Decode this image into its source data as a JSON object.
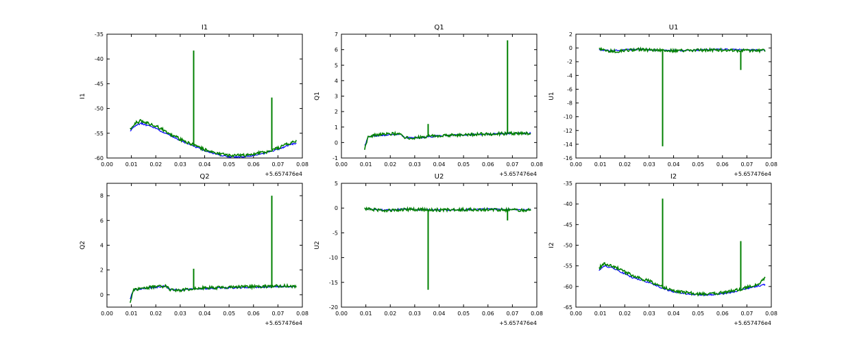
{
  "figure": {
    "x_offset_label": "+5.657476e4"
  },
  "chart_data": [
    {
      "type": "line",
      "title": "I1",
      "ylabel": "I1",
      "xlabel": "",
      "xlim": [
        0.0,
        0.08
      ],
      "ylim": [
        -60,
        -35
      ],
      "xticks": [
        "0.00",
        "0.01",
        "0.02",
        "0.03",
        "0.04",
        "0.05",
        "0.06",
        "0.07",
        "0.08"
      ],
      "yticks": [
        "-35",
        "-40",
        "-45",
        "-50",
        "-55",
        "-60"
      ],
      "x": [
        0.0095,
        0.0115,
        0.014,
        0.017,
        0.02,
        0.023,
        0.026,
        0.03,
        0.035,
        0.04,
        0.045,
        0.05,
        0.055,
        0.06,
        0.065,
        0.07,
        0.075,
        0.0775
      ],
      "series": [
        {
          "color": "#0000ff",
          "values": [
            -54.5,
            -53.5,
            -53.0,
            -53.5,
            -54.0,
            -54.8,
            -55.5,
            -56.5,
            -57.5,
            -58.5,
            -59.3,
            -59.8,
            -59.8,
            -59.5,
            -59.0,
            -58.3,
            -57.3,
            -57.0
          ]
        },
        {
          "color": "#008000",
          "values": [
            -54.0,
            -53.0,
            -52.5,
            -53.0,
            -53.5,
            -54.3,
            -55.2,
            -56.2,
            -57.3,
            -58.3,
            -59.0,
            -59.5,
            -59.5,
            -59.2,
            -58.8,
            -58.0,
            -57.0,
            -56.5
          ]
        }
      ],
      "spikes": [
        {
          "x": 0.0355,
          "y": -38.3
        },
        {
          "x": 0.0675,
          "y": -47.8
        }
      ]
    },
    {
      "type": "line",
      "title": "Q1",
      "ylabel": "Q1",
      "xlabel": "",
      "xlim": [
        0.0,
        0.08
      ],
      "ylim": [
        -1,
        7
      ],
      "xticks": [
        "0.00",
        "0.01",
        "0.02",
        "0.03",
        "0.04",
        "0.05",
        "0.06",
        "0.07",
        "0.08"
      ],
      "yticks": [
        "7",
        "6",
        "5",
        "4",
        "3",
        "2",
        "1",
        "0",
        "-1"
      ],
      "x": [
        0.0095,
        0.011,
        0.015,
        0.02,
        0.024,
        0.026,
        0.03,
        0.035,
        0.04,
        0.05,
        0.06,
        0.07,
        0.0775
      ],
      "series": [
        {
          "color": "#0000ff",
          "values": [
            -0.2,
            0.35,
            0.45,
            0.5,
            0.55,
            0.3,
            0.3,
            0.35,
            0.45,
            0.5,
            0.55,
            0.6,
            0.6
          ]
        },
        {
          "color": "#008000",
          "values": [
            -0.4,
            0.4,
            0.5,
            0.55,
            0.6,
            0.3,
            0.3,
            0.4,
            0.45,
            0.5,
            0.55,
            0.6,
            0.6
          ]
        }
      ],
      "spikes": [
        {
          "x": 0.0355,
          "y": 1.2
        },
        {
          "x": 0.068,
          "y": 6.6
        }
      ]
    },
    {
      "type": "line",
      "title": "U1",
      "ylabel": "U1",
      "xlabel": "",
      "xlim": [
        0.0,
        0.08
      ],
      "ylim": [
        -16,
        2
      ],
      "xticks": [
        "0.00",
        "0.01",
        "0.02",
        "0.03",
        "0.04",
        "0.05",
        "0.06",
        "0.07",
        "0.08"
      ],
      "yticks": [
        "2",
        "0",
        "-2",
        "-4",
        "-6",
        "-8",
        "-10",
        "-12",
        "-14",
        "-16"
      ],
      "x": [
        0.0095,
        0.015,
        0.02,
        0.025,
        0.03,
        0.04,
        0.05,
        0.06,
        0.07,
        0.0775
      ],
      "series": [
        {
          "color": "#0000ff",
          "values": [
            -0.3,
            -0.4,
            -0.3,
            -0.2,
            -0.3,
            -0.4,
            -0.3,
            -0.2,
            -0.3,
            -0.3
          ]
        },
        {
          "color": "#008000",
          "values": [
            -0.2,
            -0.5,
            -0.4,
            -0.2,
            -0.3,
            -0.4,
            -0.3,
            -0.3,
            -0.4,
            -0.4
          ]
        }
      ],
      "spikes": [
        {
          "x": 0.0355,
          "y": -14.3
        },
        {
          "x": 0.0675,
          "y": -3.2
        }
      ]
    },
    {
      "type": "line",
      "title": "Q2",
      "ylabel": "Q2",
      "xlabel": "",
      "xlim": [
        0.0,
        0.08
      ],
      "ylim": [
        -1,
        9
      ],
      "xticks": [
        "0.00",
        "0.01",
        "0.02",
        "0.03",
        "0.04",
        "0.05",
        "0.06",
        "0.07",
        "0.08"
      ],
      "yticks": [
        "8",
        "6",
        "4",
        "2",
        "0"
      ],
      "x": [
        0.0095,
        0.011,
        0.015,
        0.02,
        0.024,
        0.026,
        0.03,
        0.035,
        0.04,
        0.05,
        0.06,
        0.07,
        0.0775
      ],
      "series": [
        {
          "color": "#0000ff",
          "values": [
            -0.3,
            0.4,
            0.5,
            0.6,
            0.7,
            0.4,
            0.4,
            0.45,
            0.5,
            0.55,
            0.6,
            0.65,
            0.65
          ]
        },
        {
          "color": "#008000",
          "values": [
            -0.6,
            0.4,
            0.55,
            0.65,
            0.7,
            0.4,
            0.35,
            0.5,
            0.55,
            0.6,
            0.65,
            0.7,
            0.7
          ]
        }
      ],
      "spikes": [
        {
          "x": 0.0355,
          "y": 2.1
        },
        {
          "x": 0.0675,
          "y": 8.0
        }
      ]
    },
    {
      "type": "line",
      "title": "U2",
      "ylabel": "U2",
      "xlabel": "",
      "xlim": [
        0.0,
        0.08
      ],
      "ylim": [
        -20,
        5
      ],
      "xticks": [
        "0.00",
        "0.01",
        "0.02",
        "0.03",
        "0.04",
        "0.05",
        "0.06",
        "0.07",
        "0.08"
      ],
      "yticks": [
        "5",
        "0",
        "-5",
        "-10",
        "-15",
        "-20"
      ],
      "x": [
        0.0095,
        0.015,
        0.02,
        0.025,
        0.03,
        0.04,
        0.05,
        0.06,
        0.07,
        0.0775
      ],
      "series": [
        {
          "color": "#0000ff",
          "values": [
            -0.2,
            -0.3,
            -0.4,
            -0.2,
            -0.3,
            -0.4,
            -0.3,
            -0.2,
            -0.3,
            -0.3
          ]
        },
        {
          "color": "#008000",
          "values": [
            -0.1,
            -0.4,
            -0.5,
            -0.3,
            -0.3,
            -0.4,
            -0.3,
            -0.3,
            -0.4,
            -0.4
          ]
        }
      ],
      "spikes": [
        {
          "x": 0.0355,
          "y": -16.5
        },
        {
          "x": 0.068,
          "y": -2.5
        }
      ]
    },
    {
      "type": "line",
      "title": "I2",
      "ylabel": "I2",
      "xlabel": "",
      "xlim": [
        0.0,
        0.08
      ],
      "ylim": [
        -65,
        -35
      ],
      "xticks": [
        "0.00",
        "0.01",
        "0.02",
        "0.03",
        "0.04",
        "0.05",
        "0.06",
        "0.07",
        "0.08"
      ],
      "yticks": [
        "-35",
        "-40",
        "-45",
        "-50",
        "-55",
        "-60",
        "-65"
      ],
      "x": [
        0.0095,
        0.0115,
        0.014,
        0.017,
        0.02,
        0.023,
        0.026,
        0.03,
        0.035,
        0.04,
        0.045,
        0.05,
        0.055,
        0.06,
        0.065,
        0.07,
        0.075,
        0.0775
      ],
      "series": [
        {
          "color": "#0000ff",
          "values": [
            -56.0,
            -55.0,
            -55.3,
            -56.0,
            -57.0,
            -57.8,
            -58.3,
            -59.0,
            -60.3,
            -61.3,
            -61.7,
            -62.0,
            -62.0,
            -61.7,
            -61.3,
            -60.5,
            -59.8,
            -59.5
          ]
        },
        {
          "color": "#008000",
          "values": [
            -55.5,
            -54.5,
            -54.8,
            -55.5,
            -56.5,
            -57.3,
            -58.0,
            -58.7,
            -60.0,
            -61.0,
            -61.5,
            -61.8,
            -61.8,
            -61.5,
            -61.0,
            -60.2,
            -59.3,
            -58.0
          ]
        }
      ],
      "spikes": [
        {
          "x": 0.0355,
          "y": -38.7
        },
        {
          "x": 0.0675,
          "y": -49.0
        }
      ]
    }
  ]
}
